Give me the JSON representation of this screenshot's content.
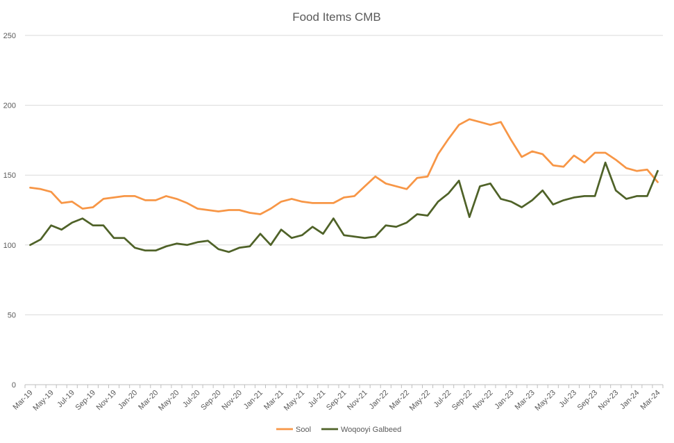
{
  "chart_data": {
    "type": "line",
    "title": "Food Items CMB",
    "xlabel": "",
    "ylabel": "",
    "ylim": [
      0,
      250
    ],
    "yticks": [
      0,
      50,
      100,
      150,
      200,
      250
    ],
    "grid": "horizontal",
    "legend_position": "bottom",
    "x": [
      "Mar-19",
      "Apr-19",
      "May-19",
      "Jun-19",
      "Jul-19",
      "Aug-19",
      "Sep-19",
      "Oct-19",
      "Nov-19",
      "Dec-19",
      "Jan-20",
      "Feb-20",
      "Mar-20",
      "Apr-20",
      "May-20",
      "Jun-20",
      "Jul-20",
      "Aug-20",
      "Sep-20",
      "Oct-20",
      "Nov-20",
      "Dec-20",
      "Jan-21",
      "Feb-21",
      "Mar-21",
      "Apr-21",
      "May-21",
      "Jun-21",
      "Jul-21",
      "Aug-21",
      "Sep-21",
      "Oct-21",
      "Nov-21",
      "Dec-21",
      "Jan-22",
      "Feb-22",
      "Mar-22",
      "Apr-22",
      "May-22",
      "Jun-22",
      "Jul-22",
      "Aug-22",
      "Sep-22",
      "Oct-22",
      "Nov-22",
      "Dec-22",
      "Jan-23",
      "Feb-23",
      "Mar-23",
      "Apr-23",
      "May-23",
      "Jun-23",
      "Jul-23",
      "Aug-23",
      "Sep-23",
      "Oct-23",
      "Nov-23",
      "Dec-23",
      "Jan-24",
      "Feb-24",
      "Mar-24"
    ],
    "xtick_labels": [
      "Mar-19",
      "May-19",
      "Jul-19",
      "Sep-19",
      "Nov-19",
      "Jan-20",
      "Mar-20",
      "May-20",
      "Jul-20",
      "Sep-20",
      "Nov-20",
      "Jan-21",
      "Mar-21",
      "May-21",
      "Jul-21",
      "Sep-21",
      "Nov-21",
      "Jan-22",
      "Mar-22",
      "May-22",
      "Jul-22",
      "Sep-22",
      "Nov-22",
      "Jan-23",
      "Mar-23",
      "May-23",
      "Jul-23",
      "Sep-23",
      "Nov-23",
      "Jan-24",
      "Mar-24"
    ],
    "series": [
      {
        "name": "Sool",
        "color": "#f79646",
        "values": [
          141,
          140,
          138,
          130,
          131,
          126,
          127,
          133,
          134,
          135,
          135,
          132,
          132,
          135,
          133,
          130,
          126,
          125,
          124,
          125,
          125,
          123,
          122,
          126,
          131,
          133,
          131,
          130,
          130,
          130,
          134,
          135,
          142,
          149,
          144,
          142,
          140,
          148,
          149,
          165,
          176,
          186,
          190,
          188,
          186,
          188,
          175,
          163,
          167,
          165,
          157,
          156,
          164,
          159,
          166,
          166,
          161,
          155,
          153,
          154,
          145
        ]
      },
      {
        "name": "Woqooyi Galbeed",
        "color": "#4f6228",
        "values": [
          100,
          104,
          114,
          111,
          116,
          119,
          114,
          114,
          105,
          105,
          98,
          96,
          96,
          99,
          101,
          100,
          102,
          103,
          97,
          95,
          98,
          99,
          108,
          100,
          111,
          105,
          107,
          113,
          108,
          119,
          107,
          106,
          105,
          106,
          114,
          113,
          116,
          122,
          121,
          131,
          137,
          146,
          120,
          142,
          144,
          133,
          131,
          127,
          132,
          139,
          129,
          132,
          134,
          135,
          135,
          159,
          139,
          133,
          135,
          135,
          153
        ]
      }
    ]
  }
}
